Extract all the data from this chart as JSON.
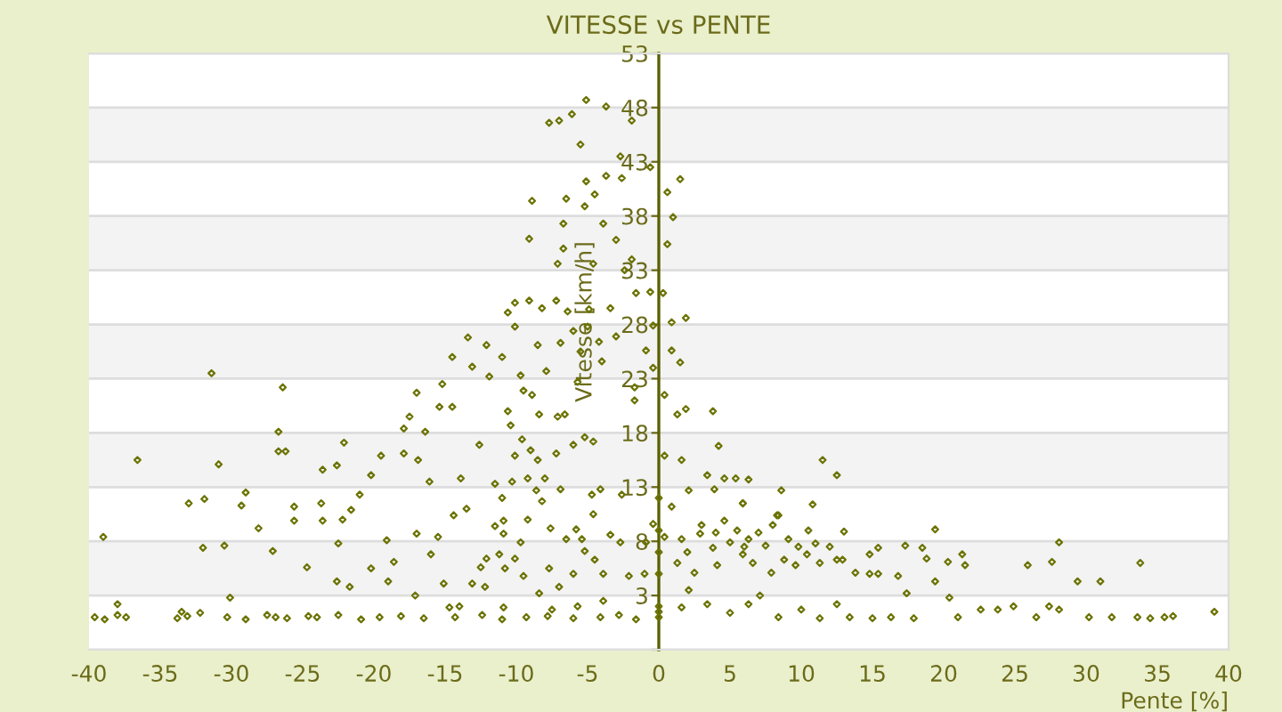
{
  "chart_data": {
    "type": "scatter",
    "title": "VITESSE vs PENTE",
    "xlabel": "Pente [%]",
    "ylabel": "Vitesse [km/h]",
    "xlim": [
      -40,
      40
    ],
    "xticks": [
      -40,
      -35,
      -30,
      -25,
      -20,
      -15,
      -10,
      -5,
      0,
      5,
      10,
      15,
      20,
      25,
      30,
      35,
      40
    ],
    "ylim": [
      -2,
      53
    ],
    "yticks": [
      {
        "value": -2,
        "label": null
      },
      3,
      8,
      13,
      18,
      23,
      28,
      33,
      38,
      43,
      48,
      53
    ],
    "grid": "y",
    "marker": "diamond",
    "bands": [
      {
        "axis": "y",
        "from": 43,
        "to": 48,
        "color": "#f3f3f3"
      },
      {
        "axis": "y",
        "from": 33,
        "to": 38,
        "color": "#f3f3f3"
      },
      {
        "axis": "y",
        "from": 23,
        "to": 28,
        "color": "#f3f3f3"
      },
      {
        "axis": "y",
        "from": 13,
        "to": 18,
        "color": "#f3f3f3"
      },
      {
        "axis": "y",
        "from": 3,
        "to": 8,
        "color": "#f3f3f3"
      }
    ],
    "series": [
      {
        "color": "#6b7300",
        "x": [
          -36.6,
          -39,
          -31.4,
          -30.9,
          -33,
          -31.9,
          -32,
          -30.5,
          -30.1,
          -29.3,
          -29,
          -28.1,
          -27.1,
          -26.4,
          -26.7,
          -26.7,
          -26.2,
          -25.6,
          -25.6,
          -24.7,
          -23.6,
          -23.7,
          -23.6,
          -22.6,
          -22.1,
          -22.2,
          -22.5,
          -21.7,
          -22.6,
          -21.6,
          -21,
          -20.2,
          -19.5,
          -20.2,
          -19.1,
          -19,
          -18.6,
          -17.9,
          -17.9,
          -17.5,
          -17,
          -16.9,
          -17,
          -16.4,
          -16.1,
          -17.1,
          -15.4,
          -15.2,
          -14.5,
          -14.5,
          -13.4,
          -13.1,
          -12.1,
          -16,
          -15.5,
          -15.1,
          -14.4,
          -13.5,
          -13.9,
          -12.6,
          -11.9,
          -11,
          -10.6,
          -10.1,
          -9.1,
          -9.1,
          -8.9,
          -7.7,
          -7,
          -6.1,
          -5.5,
          -5.1,
          -6.7,
          -6.5,
          -7.1,
          -6.7,
          -5.1,
          -5.2,
          -4.5,
          -3.7,
          -3.9,
          -4.6,
          -2.6,
          -2.7,
          -1.9,
          -3.7,
          -3,
          -10.1,
          -9.7,
          -9.5,
          -8.9,
          -8.2,
          -8.5,
          -7.9,
          -7.2,
          -6.9,
          -6.4,
          -6,
          -5.5,
          -4.9,
          -5,
          -4.2,
          -3.4,
          -3,
          -4,
          -5.7,
          -7.1,
          -6.6,
          -8.4,
          -10.4,
          -10.6,
          -5.2,
          -6,
          -4.6,
          -1.9,
          -2.4,
          -1.6,
          -1.7,
          -1.7,
          -9.6,
          -9,
          -10.1,
          -8.5,
          -7.2,
          -6.9,
          -8.6,
          -8,
          -9.2,
          -10.3,
          -11.5,
          -11,
          -11.5,
          -10.9,
          -10.9,
          -9.7,
          -9.2,
          -8.2,
          -7.6,
          -6.5,
          -5.8,
          -5.4,
          -4.6,
          -4.7,
          -4.1,
          -2.6,
          -3.4,
          -2.7,
          -5.2,
          -4.5,
          -3.9,
          -2.1,
          -6,
          -7,
          -7.7,
          -8.4,
          -9.5,
          -10.1,
          -10.8,
          -11.2,
          -12.1,
          -12.5,
          -12.2,
          -13.1,
          -14,
          -14.7,
          -10.9,
          -7.5,
          -5.7,
          -3.9,
          -38,
          -32.2,
          -33.5,
          -39.6,
          -38.9,
          -38,
          -37.4,
          -33.8,
          -33.1,
          -30.3,
          -29,
          -27.5,
          -26.9,
          -26.1,
          -24.6,
          -24,
          -22.5,
          -20.9,
          -19.6,
          -18.1,
          -16.5,
          -14.3,
          -12.4,
          -11,
          -9.3,
          -7.8,
          -6,
          -4.1,
          -2.8,
          -1.6,
          -0.6,
          1.5,
          0.6,
          1,
          0.6,
          0.3,
          -0.6,
          0.9,
          1.9,
          -0.4,
          -0.9,
          0.9,
          1.5,
          -0.4,
          0.4,
          1.3,
          1.9,
          3.8,
          4.2,
          11.5,
          12.5,
          8.6,
          10.8,
          6.3,
          5.4,
          4.6,
          3.4,
          1.6,
          0.4,
          2.1,
          3.9,
          5.9,
          8.3,
          13,
          19.4,
          28.1,
          27.6,
          25.9,
          33.8,
          29.4,
          31,
          21.5,
          21.3,
          20.3,
          18.8,
          18.5,
          17.3,
          15.4,
          14.8,
          12.9,
          14.8,
          16.8,
          19.4,
          17.4,
          20.4,
          22.6,
          23.8,
          24.9,
          27.4,
          28.1,
          39,
          0.4,
          1.6,
          2.9,
          3.8,
          5,
          5.9,
          6.6,
          7.5,
          7.9,
          8.8,
          9.6,
          10.4,
          11.3,
          12.5,
          13.8,
          15.4,
          1.3,
          2.5,
          4.1,
          2.1,
          3.4,
          5,
          6.3,
          7.1,
          8.4,
          10,
          11.3,
          12.5,
          13.4,
          15,
          16.3,
          17.9,
          1.6,
          0.9,
          4.6,
          8.4,
          5.9,
          9.1,
          6.3,
          -0.9,
          -1,
          -0.4,
          30.2,
          31.8,
          33.6,
          34.5,
          35.5,
          36.1,
          26.5,
          21,
          3,
          4,
          5.5,
          7,
          9.8,
          10.5,
          2,
          6,
          8,
          11,
          12,
          0,
          0,
          0,
          0,
          0,
          0,
          0
        ],
        "values": [
          15.5,
          8.4,
          23.5,
          15.1,
          11.5,
          11.9,
          7.4,
          7.6,
          2.8,
          11.3,
          12.5,
          9.2,
          7.1,
          22.2,
          18.1,
          16.3,
          16.3,
          11.2,
          9.9,
          5.6,
          14.6,
          11.5,
          9.9,
          15,
          17.1,
          10,
          7.8,
          3.8,
          4.3,
          10.9,
          12.3,
          14.1,
          15.9,
          5.5,
          8.1,
          4.3,
          6.1,
          16.1,
          18.4,
          19.5,
          21.7,
          15.5,
          8.7,
          18.1,
          13.5,
          3,
          20.4,
          22.5,
          25,
          20.4,
          26.8,
          24.1,
          26.1,
          6.8,
          8.4,
          4.1,
          10.4,
          11,
          13.8,
          16.9,
          23.2,
          25,
          29.1,
          30,
          30.2,
          35.9,
          39.4,
          46.6,
          46.8,
          47.4,
          44.6,
          48.7,
          37.3,
          39.6,
          33.6,
          35,
          41.2,
          38.9,
          40,
          41.7,
          37.3,
          33.6,
          41.5,
          43.5,
          46.8,
          48.1,
          35.8,
          27.8,
          23.3,
          21.9,
          21.5,
          29.5,
          26.1,
          23.7,
          30.2,
          26.3,
          29.2,
          27.4,
          25.5,
          29.4,
          27.8,
          26.4,
          29.5,
          26.9,
          24.6,
          22.7,
          19.5,
          19.7,
          19.7,
          18.7,
          20,
          17.6,
          16.9,
          17.2,
          34,
          33,
          30.9,
          22.2,
          21,
          17.4,
          16.4,
          15.9,
          15.5,
          16.1,
          12.8,
          12.7,
          13.8,
          13.8,
          13.5,
          13.3,
          12,
          9.4,
          9.9,
          8.7,
          7.9,
          10,
          11.7,
          9.2,
          8.2,
          9.1,
          8.2,
          10.5,
          12.3,
          12.8,
          12.3,
          8.6,
          7.9,
          7.1,
          6.3,
          5,
          4.8,
          5,
          3.8,
          5.5,
          3.2,
          4.8,
          6.4,
          5.5,
          6.8,
          6.4,
          5.6,
          3.8,
          4.1,
          2,
          1.9,
          1.9,
          1.7,
          2,
          2.5,
          2.2,
          1.4,
          1.5,
          1,
          0.8,
          1.2,
          1,
          0.9,
          1.1,
          1,
          0.8,
          1.2,
          1,
          0.9,
          1.1,
          1,
          1.2,
          0.8,
          1,
          1.1,
          0.9,
          1,
          1.2,
          0.8,
          1,
          1.1,
          0.9,
          1,
          1.2,
          0.8,
          42.5,
          41.4,
          40.2,
          37.9,
          35.4,
          30.9,
          31,
          28.2,
          28.6,
          27.9,
          25.6,
          25.6,
          24.5,
          24,
          21.5,
          19.7,
          20.2,
          20,
          16.8,
          15.5,
          14.1,
          12.7,
          11.4,
          13.7,
          13.8,
          13.8,
          14.1,
          15.5,
          15.9,
          12.7,
          12.8,
          11.5,
          10.4,
          8.9,
          9.1,
          7.9,
          6.1,
          5.8,
          6,
          4.3,
          4.3,
          5.8,
          6.8,
          6.1,
          6.4,
          7.4,
          7.6,
          7.4,
          6.8,
          6.3,
          5,
          4.8,
          4.3,
          3.2,
          2.8,
          1.7,
          1.7,
          2,
          2,
          1.7,
          1.5,
          8.4,
          8.2,
          8.7,
          7.4,
          7.9,
          6.8,
          6,
          7.6,
          5.1,
          6.3,
          5.8,
          6.8,
          6,
          6.3,
          5.1,
          5,
          6,
          5.1,
          5.8,
          3.5,
          2.2,
          1.4,
          2.2,
          3,
          1,
          1.7,
          0.9,
          2.2,
          1,
          0.9,
          1,
          0.9,
          1.9,
          11.2,
          9.9,
          10.4,
          11.5,
          8.2,
          8.2,
          7.9,
          5,
          9.6,
          1,
          1,
          1,
          0.9,
          1,
          1.1,
          1,
          1,
          9.5,
          8.8,
          9,
          8.8,
          7.5,
          9,
          7,
          7.5,
          9.5,
          7.8,
          7.5,
          1,
          1.5,
          2,
          5,
          7,
          9,
          12
        ]
      }
    ]
  }
}
